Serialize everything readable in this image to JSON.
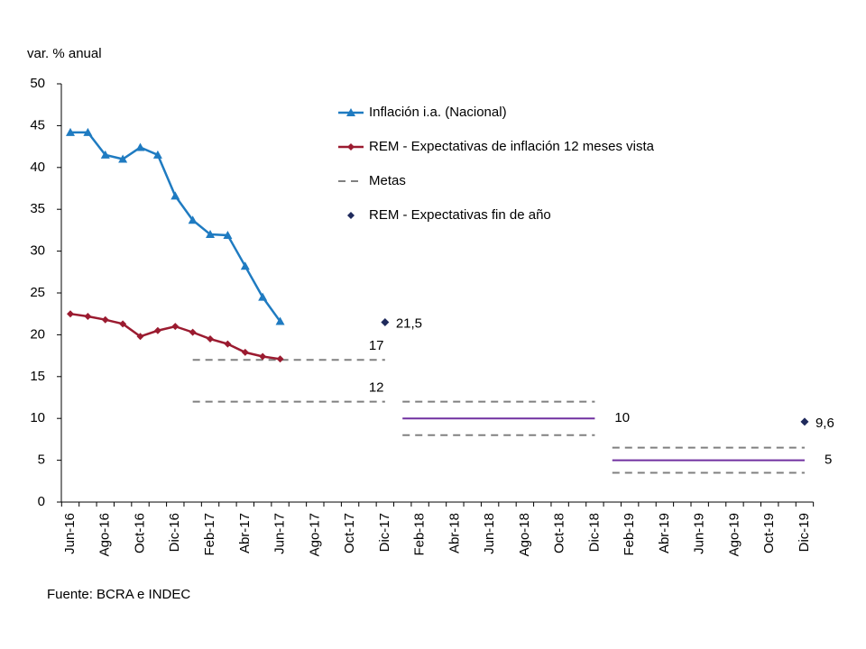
{
  "chart_data": {
    "type": "line",
    "y_axis_label": "var. % anual",
    "source": "Fuente: BCRA e INDEC",
    "categories": [
      "Jun-16",
      null,
      "Ago-16",
      null,
      "Oct-16",
      null,
      "Dic-16",
      null,
      "Feb-17",
      null,
      "Abr-17",
      null,
      "Jun-17",
      null,
      "Ago-17",
      null,
      "Oct-17",
      null,
      "Dic-17",
      null,
      "Feb-18",
      null,
      "Abr-18",
      null,
      "Jun-18",
      null,
      "Ago-18",
      null,
      "Oct-18",
      null,
      "Dic-18",
      null,
      "Feb-19",
      null,
      "Abr-19",
      null,
      "Jun-19",
      null,
      "Ago-19",
      null,
      "Oct-19",
      null,
      "Dic-19"
    ],
    "ylim": [
      0,
      50
    ],
    "yticks": [
      0,
      5,
      10,
      15,
      20,
      25,
      30,
      35,
      40,
      45,
      50
    ],
    "series": [
      {
        "name": "Inflación i.a. (Nacional)",
        "color": "#1f7bc1",
        "marker": "triangle",
        "values": [
          44.2,
          44.2,
          41.5,
          41.0,
          42.4,
          41.5,
          36.6,
          33.7,
          32.0,
          31.9,
          28.2,
          24.5,
          21.6,
          null,
          null,
          null,
          null,
          null,
          null,
          null,
          null,
          null,
          null,
          null,
          null,
          null,
          null,
          null,
          null,
          null,
          null,
          null,
          null,
          null,
          null,
          null,
          null,
          null,
          null,
          null,
          null,
          null,
          null
        ]
      },
      {
        "name": "REM - Expectativas de inflación 12 meses vista",
        "color": "#9b1b30",
        "marker": "diamond",
        "values": [
          22.5,
          22.2,
          21.8,
          21.3,
          19.8,
          20.5,
          21.0,
          20.3,
          19.5,
          18.9,
          17.9,
          17.4,
          17.1,
          null,
          null,
          null,
          null,
          null,
          null,
          null,
          null,
          null,
          null,
          null,
          null,
          null,
          null,
          null,
          null,
          null,
          null,
          null,
          null,
          null,
          null,
          null,
          null,
          null,
          null,
          null,
          null,
          null,
          null
        ]
      }
    ],
    "metas": {
      "name": "Metas",
      "color": "#808080",
      "mid_color": "#7030a0",
      "high": [
        null,
        null,
        null,
        null,
        null,
        null,
        null,
        17,
        17,
        17,
        17,
        17,
        17,
        17,
        17,
        17,
        17,
        17,
        17,
        12,
        12,
        12,
        12,
        12,
        12,
        12,
        12,
        12,
        12,
        12,
        12,
        6.5,
        6.5,
        6.5,
        6.5,
        6.5,
        6.5,
        6.5,
        6.5,
        6.5,
        6.5,
        6.5,
        6.5
      ],
      "low": [
        null,
        null,
        null,
        null,
        null,
        null,
        null,
        12,
        12,
        12,
        12,
        12,
        12,
        12,
        12,
        12,
        12,
        12,
        12,
        8,
        8,
        8,
        8,
        8,
        8,
        8,
        8,
        8,
        8,
        8,
        8,
        3.5,
        3.5,
        3.5,
        3.5,
        3.5,
        3.5,
        3.5,
        3.5,
        3.5,
        3.5,
        3.5,
        3.5
      ],
      "mid": [
        null,
        null,
        null,
        null,
        null,
        null,
        null,
        null,
        null,
        null,
        null,
        null,
        null,
        null,
        null,
        null,
        null,
        null,
        null,
        10,
        10,
        10,
        10,
        10,
        10,
        10,
        10,
        10,
        10,
        10,
        10,
        5,
        5,
        5,
        5,
        5,
        5,
        5,
        5,
        5,
        5,
        5,
        5
      ]
    },
    "year_end": {
      "name": "REM - Expectativas fin de año",
      "color": "#1f2a5c",
      "values": [
        null,
        null,
        null,
        null,
        null,
        null,
        null,
        null,
        null,
        null,
        null,
        null,
        null,
        null,
        null,
        null,
        null,
        null,
        21.5,
        null,
        null,
        null,
        null,
        null,
        null,
        null,
        null,
        null,
        null,
        null,
        null,
        null,
        null,
        null,
        null,
        null,
        null,
        null,
        null,
        null,
        null,
        null,
        9.6
      ],
      "value_labels": [
        null,
        null,
        null,
        null,
        null,
        null,
        null,
        null,
        null,
        null,
        null,
        null,
        null,
        null,
        null,
        null,
        null,
        null,
        "21,5",
        null,
        null,
        null,
        null,
        null,
        null,
        null,
        null,
        null,
        null,
        null,
        null,
        null,
        null,
        null,
        null,
        null,
        null,
        null,
        null,
        null,
        null,
        null,
        "9,6"
      ]
    }
  }
}
